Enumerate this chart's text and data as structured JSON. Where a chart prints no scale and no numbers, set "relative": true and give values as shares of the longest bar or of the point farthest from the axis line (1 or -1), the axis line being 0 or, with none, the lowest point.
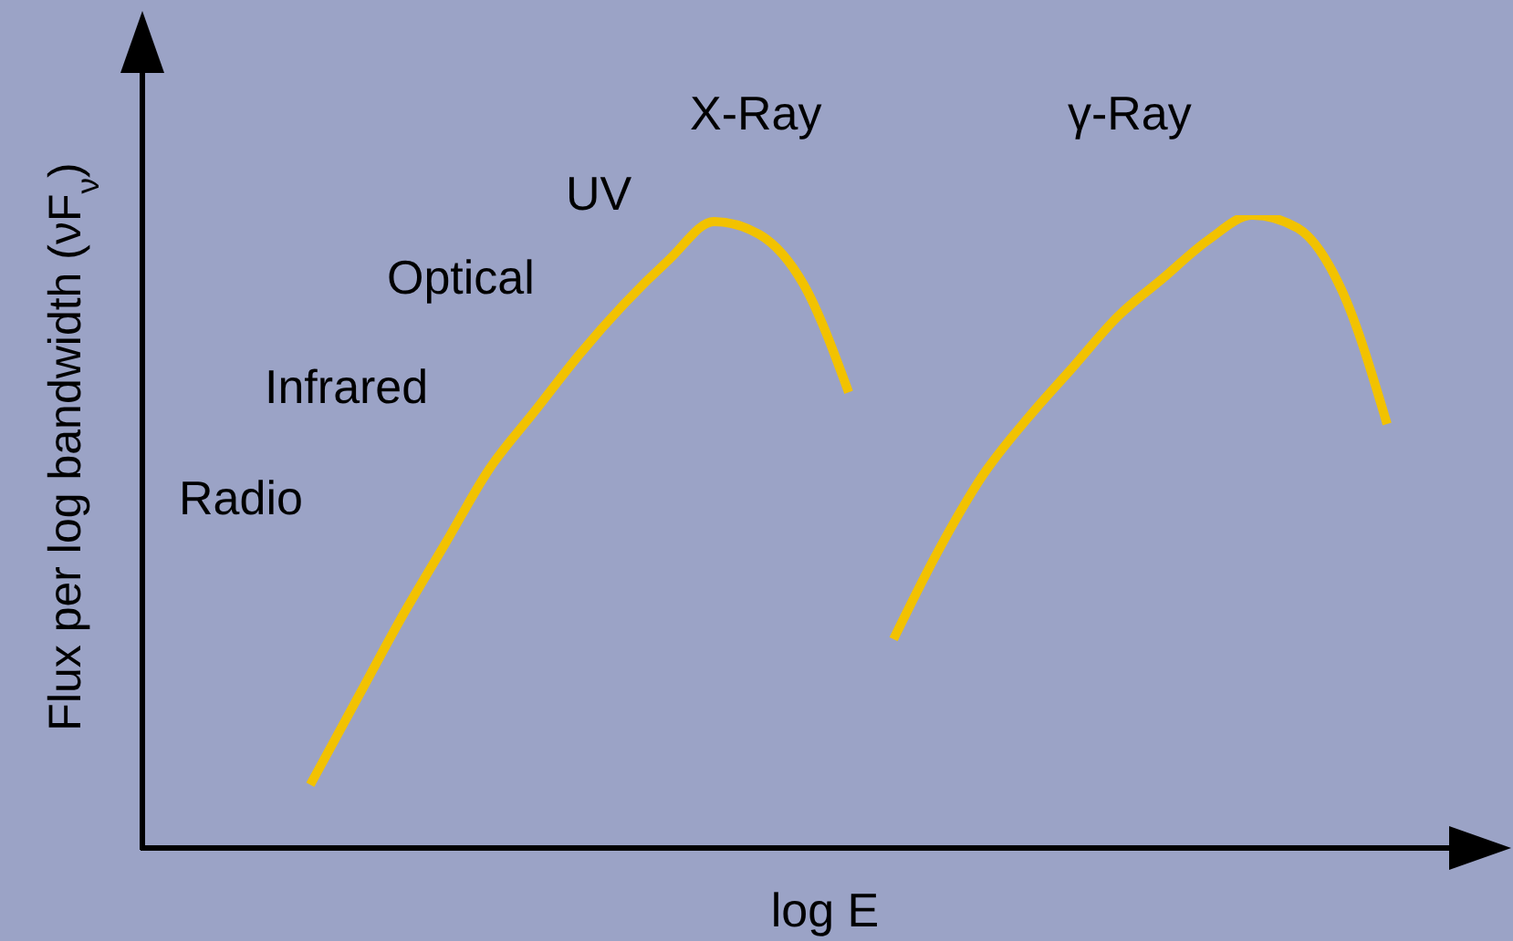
{
  "chart_data": {
    "type": "line",
    "relative": true,
    "xlabel": "log E",
    "ylabel": "Flux per log bandwidth (νF$_{ν}$)",
    "categories": [
      null,
      null,
      null,
      null,
      null,
      null,
      null,
      null,
      null,
      null,
      null,
      null,
      null,
      null,
      null,
      null,
      null,
      null,
      null,
      null,
      null,
      null,
      null,
      null,
      null
    ],
    "series": [
      {
        "color": "#f2c200",
        "values": [
          0.1,
          0.23,
          0.36,
          0.48,
          0.6,
          0.69,
          0.78,
          0.86,
          0.93,
          0.99,
          0.97,
          0.89,
          0.72,
          null,
          null,
          null,
          null,
          null,
          null,
          null,
          null,
          null,
          null,
          null,
          null
        ]
      },
      {
        "color": "#f2c200",
        "values": [
          null,
          null,
          null,
          null,
          null,
          null,
          null,
          null,
          null,
          null,
          null,
          null,
          null,
          0.33,
          0.47,
          0.59,
          0.68,
          0.76,
          0.84,
          0.9,
          0.96,
          1,
          0.98,
          0.88,
          0.67
        ]
      }
    ],
    "annotations": [
      "Radio",
      "Infrared",
      "Optical",
      "UV",
      "X-Ray",
      "γ-Ray"
    ],
    "grid": false,
    "marker": "none",
    "line_style": "solid"
  }
}
